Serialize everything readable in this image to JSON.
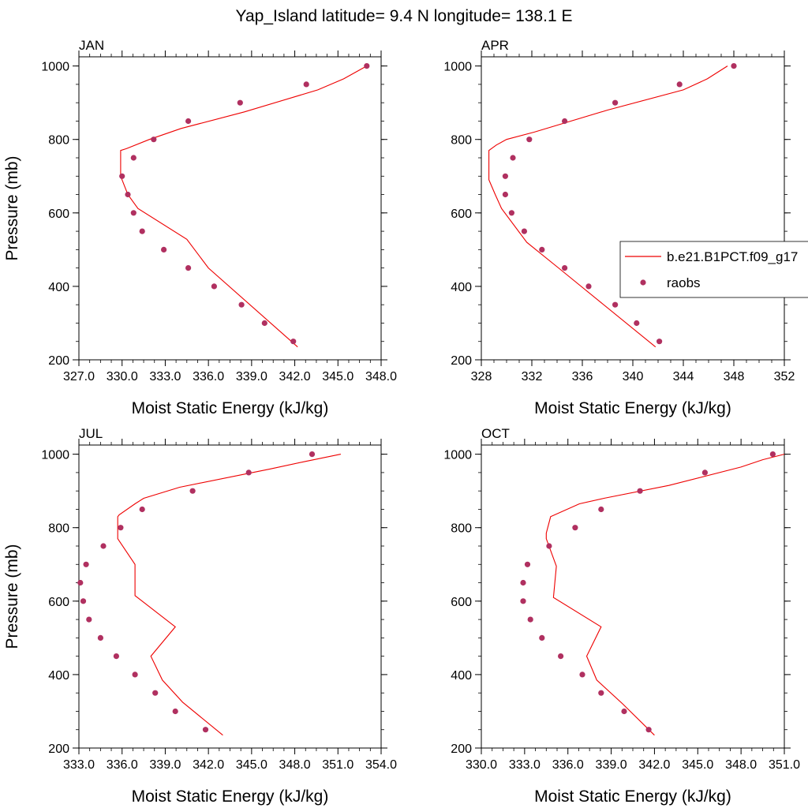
{
  "title": "Yap_Island  latitude= 9.4 N longitude= 138.1 E",
  "colors": {
    "model": "#ee0000",
    "obs": "#b03060",
    "axis": "#000000"
  },
  "legend": {
    "model_label": "b.e21.B1PCT.f09_g17",
    "obs_label": "raobs",
    "placement": "right of APR panel"
  },
  "chart_data": [
    {
      "type": "line",
      "panel_label": "JAN",
      "xlabel": "Moist Static Energy (kJ/kg)",
      "ylabel": "Pressure (mb)",
      "xlim": [
        327,
        348
      ],
      "ylim": [
        1025,
        200
      ],
      "y_inverted": true,
      "xticks": [
        327,
        330,
        333,
        336,
        339,
        342,
        345,
        348
      ],
      "xtick_labels": [
        "327.0",
        "330.0",
        "333.0",
        "336.0",
        "339.0",
        "342.0",
        "345.0",
        "348.0"
      ],
      "yticks": [
        200,
        400,
        600,
        800,
        1000
      ],
      "ytick_labels": [
        "200",
        "400",
        "600",
        "800",
        "1000"
      ],
      "series": [
        {
          "name": "b.e21.B1PCT.f09_g17",
          "kind": "line",
          "x": [
            347.0,
            345.4,
            343.6,
            338.5,
            334.1,
            331.9,
            330.3,
            329.9,
            329.9,
            330.4,
            331.1,
            334.5,
            336.0,
            342.2
          ],
          "y": [
            1000,
            965,
            935,
            875,
            830,
            800,
            775,
            770,
            700,
            650,
            612,
            528,
            450,
            235
          ]
        },
        {
          "name": "raobs",
          "kind": "scatter",
          "x": [
            347.0,
            342.8,
            338.2,
            334.6,
            332.2,
            330.8,
            330.0,
            330.4,
            330.8,
            331.4,
            332.9,
            334.6,
            336.4,
            338.3,
            339.9,
            341.9
          ],
          "y": [
            1000,
            950,
            900,
            850,
            800,
            750,
            700,
            650,
            600,
            550,
            500,
            450,
            400,
            350,
            300,
            250
          ]
        }
      ]
    },
    {
      "type": "line",
      "panel_label": "APR",
      "xlabel": "Moist Static Energy (kJ/kg)",
      "ylabel": "",
      "xlim": [
        328,
        352
      ],
      "ylim": [
        1025,
        200
      ],
      "y_inverted": true,
      "xticks": [
        328,
        332,
        336,
        340,
        344,
        348,
        352
      ],
      "xtick_labels": [
        "328",
        "332",
        "336",
        "340",
        "344",
        "348",
        "352"
      ],
      "yticks": [
        200,
        400,
        600,
        800,
        1000
      ],
      "ytick_labels": [
        "200",
        "400",
        "600",
        "800",
        "1000"
      ],
      "series": [
        {
          "name": "b.e21.B1PCT.f09_g17",
          "kind": "line",
          "x": [
            347.5,
            345.9,
            344.0,
            338.0,
            332.2,
            330.0,
            329.2,
            328.6,
            328.6,
            329.1,
            329.6,
            331.6,
            334.3,
            341.8
          ],
          "y": [
            1000,
            965,
            935,
            880,
            820,
            800,
            785,
            770,
            690,
            650,
            612,
            520,
            445,
            235
          ]
        },
        {
          "name": "raobs",
          "kind": "scatter",
          "x": [
            348.0,
            343.7,
            338.6,
            334.6,
            331.8,
            330.5,
            329.9,
            329.9,
            330.4,
            331.4,
            332.8,
            334.6,
            336.5,
            338.6,
            340.3,
            342.1
          ],
          "y": [
            1000,
            950,
            900,
            850,
            800,
            750,
            700,
            650,
            600,
            550,
            500,
            450,
            400,
            350,
            300,
            250
          ]
        }
      ]
    },
    {
      "type": "line",
      "panel_label": "JUL",
      "xlabel": "Moist Static Energy (kJ/kg)",
      "ylabel": "Pressure (mb)",
      "xlim": [
        333,
        354
      ],
      "ylim": [
        1025,
        200
      ],
      "y_inverted": true,
      "xticks": [
        333,
        336,
        339,
        342,
        345,
        348,
        351,
        354
      ],
      "xtick_labels": [
        "333.0",
        "336.0",
        "339.0",
        "342.0",
        "345.0",
        "348.0",
        "351.0",
        "354.0"
      ],
      "yticks": [
        200,
        400,
        600,
        800,
        1000
      ],
      "ytick_labels": [
        "200",
        "400",
        "600",
        "800",
        "1000"
      ],
      "series": [
        {
          "name": "b.e21.B1PCT.f09_g17",
          "kind": "line",
          "x": [
            351.2,
            348.7,
            346.3,
            340.0,
            337.5,
            336.9,
            335.8,
            335.7,
            335.7,
            336.9,
            336.9,
            339.7,
            338.0,
            338.8,
            340.2,
            343.0
          ],
          "y": [
            1000,
            980,
            960,
            910,
            880,
            865,
            835,
            830,
            770,
            700,
            615,
            530,
            450,
            385,
            325,
            235
          ]
        },
        {
          "name": "raobs",
          "kind": "scatter",
          "x": [
            349.2,
            344.8,
            340.9,
            337.4,
            335.9,
            334.7,
            333.5,
            333.1,
            333.3,
            333.7,
            334.5,
            335.6,
            336.9,
            338.3,
            339.7,
            341.8
          ],
          "y": [
            1000,
            950,
            900,
            850,
            800,
            750,
            700,
            650,
            600,
            550,
            500,
            450,
            400,
            350,
            300,
            250
          ]
        }
      ]
    },
    {
      "type": "line",
      "panel_label": "OCT",
      "xlabel": "Moist Static Energy (kJ/kg)",
      "ylabel": "",
      "xlim": [
        330,
        351
      ],
      "ylim": [
        1025,
        200
      ],
      "y_inverted": true,
      "xticks": [
        330,
        333,
        336,
        339,
        342,
        345,
        348,
        351
      ],
      "xtick_labels": [
        "330.0",
        "333.0",
        "336.0",
        "339.0",
        "342.0",
        "345.0",
        "348.0",
        "351.0"
      ],
      "yticks": [
        200,
        400,
        600,
        800,
        1000
      ],
      "ytick_labels": [
        "200",
        "400",
        "600",
        "800",
        "1000"
      ],
      "series": [
        {
          "name": "b.e21.B1PCT.f09_g17",
          "kind": "line",
          "x": [
            351.0,
            349.5,
            348.0,
            343.0,
            338.5,
            336.8,
            334.8,
            334.5,
            334.5,
            335.2,
            335.0,
            338.3,
            337.3,
            338.0,
            339.8,
            342.0
          ],
          "y": [
            1000,
            985,
            965,
            915,
            880,
            865,
            830,
            785,
            770,
            695,
            610,
            530,
            450,
            385,
            320,
            235
          ]
        },
        {
          "name": "raobs",
          "kind": "scatter",
          "x": [
            350.2,
            345.5,
            341.0,
            338.3,
            336.5,
            334.7,
            333.2,
            332.9,
            332.9,
            333.4,
            334.2,
            335.5,
            337.0,
            338.3,
            339.9,
            341.6
          ],
          "y": [
            1000,
            950,
            900,
            850,
            800,
            750,
            700,
            650,
            600,
            550,
            500,
            450,
            400,
            350,
            300,
            250
          ]
        }
      ]
    }
  ]
}
